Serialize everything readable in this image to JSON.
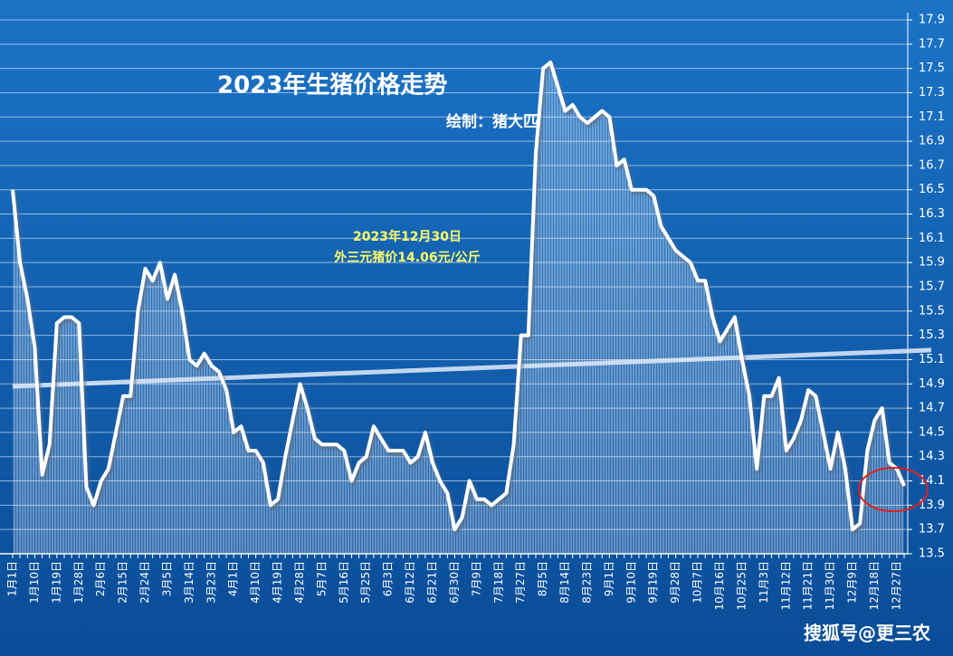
{
  "chart_data": {
    "type": "line",
    "title": "2023年生猪价格走势",
    "subtitle": "绘制：猪大匹",
    "annotation": [
      "2023年12月30日",
      "外三元猪价14.06元/公斤"
    ],
    "watermark": "搜狐号@更三农",
    "categories": [
      "1月1日",
      null,
      null,
      "1月10日",
      null,
      null,
      "1月19日",
      null,
      null,
      "1月28日",
      null,
      null,
      "2月6日",
      null,
      null,
      "2月15日",
      null,
      null,
      "2月24日",
      null,
      null,
      "3月5日",
      null,
      null,
      "3月14日",
      null,
      null,
      "3月23日",
      null,
      null,
      "4月1日",
      null,
      null,
      "4月10日",
      null,
      null,
      "4月19日",
      null,
      null,
      "4月28日",
      null,
      null,
      "5月7日",
      null,
      null,
      "5月16日",
      null,
      null,
      "5月25日",
      null,
      null,
      "6月3日",
      null,
      null,
      "6月12日",
      null,
      null,
      "6月21日",
      null,
      null,
      "6月30日",
      null,
      null,
      "7月9日",
      null,
      null,
      "7月18日",
      null,
      null,
      "7月27日",
      null,
      null,
      "8月5日",
      null,
      null,
      "8月14日",
      null,
      null,
      "8月23日",
      null,
      null,
      "9月1日",
      null,
      null,
      "9月10日",
      null,
      null,
      "9月19日",
      null,
      null,
      "9月28日",
      null,
      null,
      "10月7日",
      null,
      null,
      "10月16日",
      null,
      null,
      "10月25日",
      null,
      null,
      "11月3日",
      null,
      null,
      "11月12日",
      null,
      null,
      "11月21日",
      null,
      null,
      "11月30日",
      null,
      null,
      "12月9日",
      null,
      null,
      "12月18日",
      null,
      null,
      "12月27日",
      null
    ],
    "values": [
      16.5,
      15.9,
      15.6,
      15.2,
      14.15,
      14.4,
      15.4,
      15.45,
      15.45,
      15.4,
      14.05,
      13.9,
      14.1,
      14.2,
      14.5,
      14.8,
      14.8,
      15.5,
      15.85,
      15.75,
      15.9,
      15.6,
      15.8,
      15.5,
      15.1,
      15.05,
      15.15,
      15.05,
      15.0,
      14.85,
      14.5,
      14.55,
      14.35,
      14.35,
      14.25,
      13.9,
      13.95,
      14.3,
      14.6,
      14.9,
      14.7,
      14.45,
      14.4,
      14.4,
      14.4,
      14.35,
      14.1,
      14.25,
      14.3,
      14.55,
      14.45,
      14.35,
      14.35,
      14.35,
      14.25,
      14.3,
      14.5,
      14.25,
      14.1,
      14.0,
      13.7,
      13.8,
      14.1,
      13.95,
      13.95,
      13.9,
      13.95,
      14.0,
      14.4,
      15.3,
      15.3,
      16.8,
      17.5,
      17.55,
      17.35,
      17.15,
      17.2,
      17.1,
      17.05,
      17.1,
      17.15,
      17.1,
      16.7,
      16.75,
      16.5,
      16.5,
      16.5,
      16.45,
      16.2,
      16.1,
      16.0,
      15.95,
      15.9,
      15.75,
      15.75,
      15.45,
      15.25,
      15.35,
      15.45,
      15.1,
      14.8,
      14.2,
      14.8,
      14.8,
      14.95,
      14.35,
      14.45,
      14.6,
      14.85,
      14.8,
      14.5,
      14.2,
      14.5,
      14.2,
      13.7,
      13.75,
      14.35,
      14.6,
      14.7,
      14.25,
      14.2,
      14.06
    ],
    "trendline": [
      14.88,
      15.17
    ],
    "color": "#ffffff",
    "ylim": [
      13.5,
      17.9
    ],
    "yticks": [
      13.5,
      13.7,
      13.9,
      14.1,
      14.3,
      14.5,
      14.7,
      14.9,
      15.1,
      15.3,
      15.5,
      15.7,
      15.9,
      16.1,
      16.3,
      16.5,
      16.7,
      16.9,
      17.1,
      17.3,
      17.5,
      17.7,
      17.9
    ],
    "grid": true
  }
}
